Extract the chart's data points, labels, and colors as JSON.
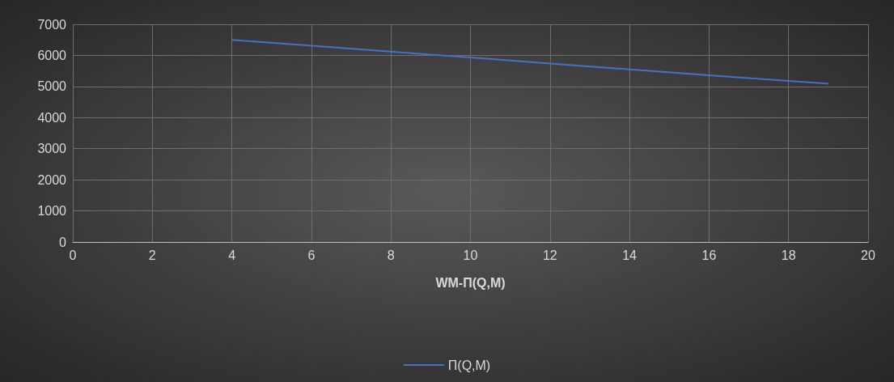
{
  "chart_data": {
    "type": "line",
    "xlabel": "WM-П(Q,M)",
    "x": [
      4,
      6,
      8,
      10,
      12,
      14,
      16,
      18,
      19
    ],
    "series": [
      {
        "name": "П(Q,M)",
        "color": "#4472c4",
        "values": [
          6500,
          6310,
          6120,
          5930,
          5740,
          5550,
          5360,
          5180,
          5090
        ]
      }
    ],
    "xlim": [
      0,
      20
    ],
    "xticks": [
      0,
      2,
      4,
      6,
      8,
      10,
      12,
      14,
      16,
      18,
      20
    ],
    "ylim": [
      0,
      7000
    ],
    "yticks": [
      0,
      1000,
      2000,
      3000,
      4000,
      5000,
      6000,
      7000
    ],
    "grid": true,
    "legend": "bottom",
    "marker": "none",
    "line_style": "solid"
  }
}
